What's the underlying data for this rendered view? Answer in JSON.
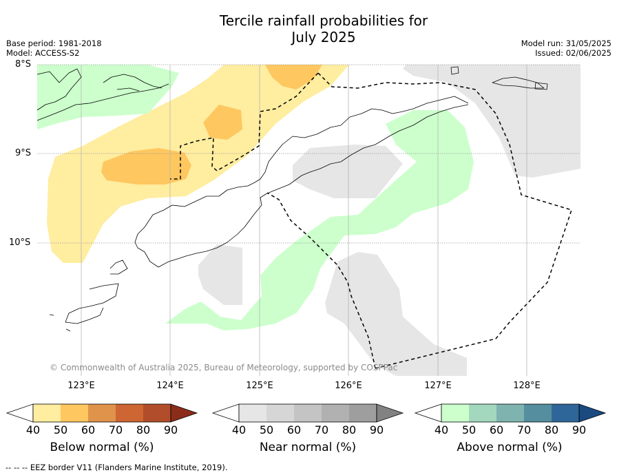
{
  "title_line1": "Tercile rainfall probabilities for",
  "title_line2": "July 2025",
  "meta_left": [
    "Base period: 1981-2018",
    "Model: ACCESS-S2"
  ],
  "meta_right": [
    "Model run: 31/05/2025",
    "Issued: 02/06/2025"
  ],
  "lat_labels": [
    "8°S",
    "9°S",
    "10°S"
  ],
  "lon_labels": [
    "123°E",
    "124°E",
    "125°E",
    "126°E",
    "127°E",
    "128°E"
  ],
  "copyright": "© Commonwealth of Australia 2025, Bureau of Meteorology, supported by COSPPac",
  "colorbars": [
    {
      "title": "Below normal (%)",
      "ticks": [
        "40",
        "50",
        "60",
        "70",
        "80",
        "90"
      ],
      "colors": [
        "#ffffff",
        "#ffeda0",
        "#fec75f",
        "#e0934a",
        "#cd6632",
        "#b14d2a",
        "#8c2d1a"
      ]
    },
    {
      "title": "Near normal (%)",
      "ticks": [
        "40",
        "50",
        "60",
        "70",
        "80",
        "90"
      ],
      "colors": [
        "#ffffff",
        "#e6e6e6",
        "#d6d6d6",
        "#c4c4c4",
        "#b1b1b1",
        "#9e9e9e",
        "#828282"
      ]
    },
    {
      "title": "Above normal (%)",
      "ticks": [
        "40",
        "50",
        "60",
        "70",
        "80",
        "90"
      ],
      "colors": [
        "#ffffff",
        "#ccffcc",
        "#a3d8be",
        "#7fb3b0",
        "#558e9e",
        "#2f6699",
        "#1a4a80"
      ]
    }
  ],
  "footnote": "--  --  -- EEZ border V11 (Flanders Marine Institute, 2019)."
}
